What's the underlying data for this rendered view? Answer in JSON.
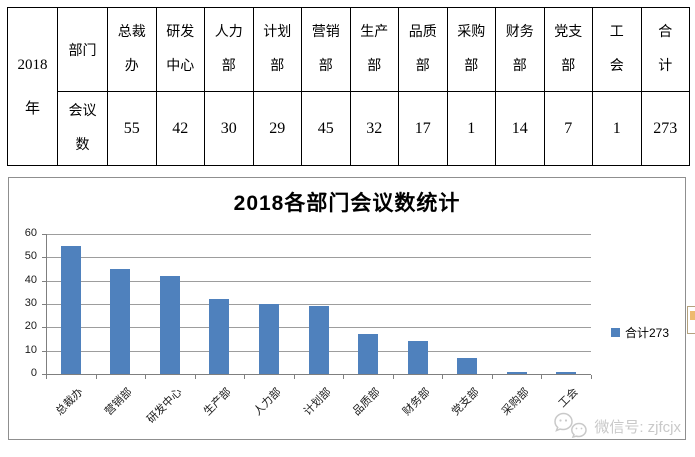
{
  "table": {
    "year": {
      "label": "2018年",
      "lines": [
        "2018",
        "年"
      ]
    },
    "row_labels": {
      "header": "部门",
      "value_label": "会议数",
      "value_lines": [
        "会议",
        "数"
      ]
    },
    "columns": [
      {
        "label": "总裁办",
        "lines": [
          "总裁",
          "办"
        ],
        "value": 55
      },
      {
        "label": "研发中心",
        "lines": [
          "研发",
          "中心"
        ],
        "value": 42
      },
      {
        "label": "人力部",
        "lines": [
          "人力",
          "部"
        ],
        "value": 30
      },
      {
        "label": "计划部",
        "lines": [
          "计划",
          "部"
        ],
        "value": 29
      },
      {
        "label": "营销部",
        "lines": [
          "营销",
          "部"
        ],
        "value": 45
      },
      {
        "label": "生产部",
        "lines": [
          "生产",
          "部"
        ],
        "value": 32
      },
      {
        "label": "品质部",
        "lines": [
          "品质",
          "部"
        ],
        "value": 17
      },
      {
        "label": "采购部",
        "lines": [
          "采购",
          "部"
        ],
        "value": 1
      },
      {
        "label": "财务部",
        "lines": [
          "财务",
          "部"
        ],
        "value": 14
      },
      {
        "label": "党支部",
        "lines": [
          "党支",
          "部"
        ],
        "value": 7
      },
      {
        "label": "工会",
        "lines": [
          "工",
          "会"
        ],
        "value": 1
      },
      {
        "label": "合计",
        "lines": [
          "合",
          "计"
        ],
        "value": 273
      }
    ]
  },
  "chart_data": {
    "type": "bar",
    "title": "2018各部门会议数统计",
    "categories": [
      "总裁办",
      "营销部",
      "研发中心",
      "生产部",
      "人力部",
      "计划部",
      "品质部",
      "财务部",
      "党支部",
      "采购部",
      "工会"
    ],
    "values": [
      55,
      45,
      42,
      32,
      30,
      29,
      17,
      14,
      7,
      1,
      1
    ],
    "xlabel": "",
    "ylabel": "",
    "ylim": [
      0,
      60
    ],
    "yticks": [
      0,
      10,
      20,
      30,
      40,
      50,
      60
    ],
    "grid": true,
    "legend": {
      "label": "合计273",
      "position": "right"
    },
    "bar_color": "#4f81bd"
  },
  "watermark": {
    "icon": "wechat-icon",
    "text": "微信号: zjfcjx"
  },
  "colors": {
    "bar": "#4f81bd",
    "gridline": "#9d9d9d",
    "axis": "#7f7f7f",
    "table_border": "#000000",
    "watermark": "#c9c9c9"
  }
}
